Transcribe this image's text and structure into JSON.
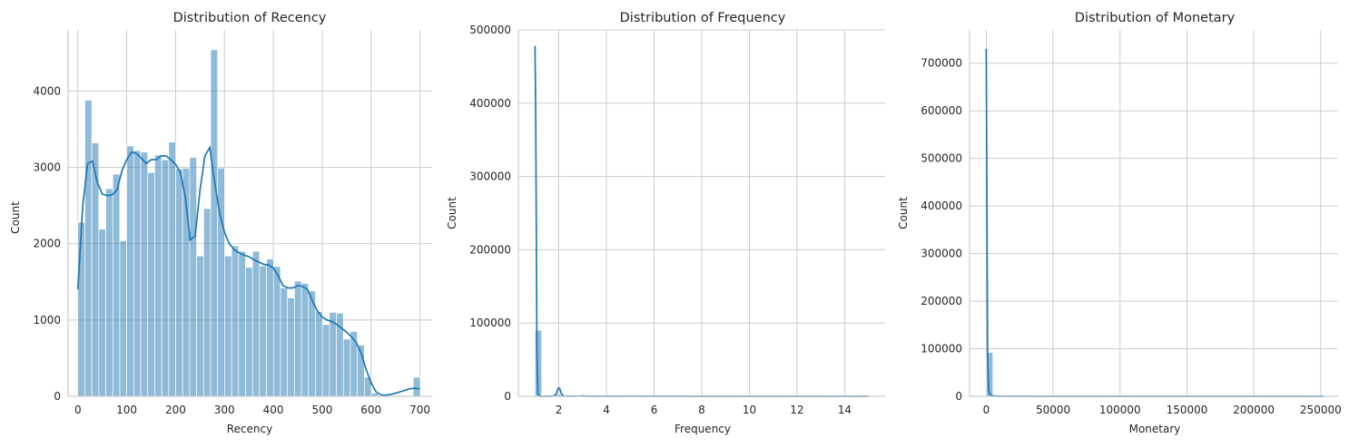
{
  "chart_data": [
    {
      "type": "histogram",
      "title": "Distribution of Recency",
      "xlabel": "Recency",
      "ylabel": "Count",
      "xlim": [
        -20,
        725
      ],
      "ylim": [
        0,
        4800
      ],
      "xticks": [
        0,
        100,
        200,
        300,
        400,
        500,
        600,
        700
      ],
      "yticks": [
        0,
        1000,
        2000,
        3000,
        4000
      ],
      "grid": true,
      "bin_edges": [
        0,
        14.3,
        28.6,
        42.9,
        57.2,
        71.5,
        85.8,
        100.1,
        114.4,
        128.7,
        143,
        157.3,
        171.6,
        185.9,
        200.2,
        214.5,
        228.8,
        243.1,
        257.4,
        271.7,
        286,
        300.3,
        314.6,
        328.9,
        343.2,
        357.5,
        371.8,
        386.1,
        400.4,
        414.7,
        429,
        443.3,
        457.6,
        471.9,
        486.2,
        500.5,
        514.8,
        529.1,
        543.4,
        557.7,
        572,
        586.3,
        600.6,
        614.9,
        629.2,
        643.5,
        657.8,
        672.1,
        686.4,
        700.7
      ],
      "counts": [
        2280,
        3880,
        3320,
        2190,
        2720,
        2910,
        2040,
        3280,
        3220,
        3200,
        2930,
        3160,
        3100,
        3330,
        2980,
        2990,
        3130,
        1840,
        2460,
        4540,
        2990,
        1840,
        1970,
        1900,
        1690,
        1900,
        1710,
        1800,
        1700,
        1420,
        1290,
        1510,
        1480,
        1380,
        1110,
        940,
        1100,
        1090,
        750,
        850,
        670,
        250,
        40,
        0,
        0,
        0,
        0,
        0,
        250
      ],
      "kde": {
        "x": [
          0,
          10,
          20,
          30,
          40,
          50,
          60,
          70,
          80,
          90,
          100,
          110,
          120,
          130,
          140,
          150,
          160,
          170,
          180,
          190,
          200,
          210,
          220,
          230,
          240,
          250,
          260,
          270,
          280,
          290,
          300,
          310,
          320,
          330,
          340,
          350,
          360,
          370,
          380,
          390,
          400,
          410,
          420,
          430,
          440,
          450,
          460,
          470,
          480,
          490,
          500,
          510,
          520,
          530,
          540,
          550,
          560,
          570,
          580,
          590,
          600,
          610,
          620,
          630,
          640,
          650,
          660,
          670,
          680,
          690,
          700
        ],
        "y": [
          1400,
          2500,
          3050,
          3080,
          2800,
          2650,
          2630,
          2640,
          2700,
          2950,
          3100,
          3200,
          3180,
          3120,
          3050,
          3100,
          3100,
          3150,
          3150,
          3100,
          3040,
          2930,
          2600,
          2050,
          2100,
          2700,
          3150,
          3260,
          2800,
          2400,
          2150,
          2000,
          1920,
          1880,
          1850,
          1830,
          1790,
          1760,
          1730,
          1720,
          1680,
          1580,
          1450,
          1420,
          1420,
          1450,
          1440,
          1400,
          1250,
          1120,
          1040,
          1000,
          980,
          940,
          890,
          840,
          780,
          700,
          560,
          350,
          180,
          60,
          20,
          15,
          25,
          40,
          60,
          80,
          100,
          105,
          95
        ]
      }
    },
    {
      "type": "histogram",
      "title": "Distribution of Frequency",
      "xlabel": "Frequency",
      "ylabel": "Count",
      "xlim": [
        0.3,
        15.7
      ],
      "ylim": [
        0,
        500000
      ],
      "xticks": [
        2,
        4,
        6,
        8,
        10,
        12,
        14
      ],
      "yticks": [
        0,
        100000,
        200000,
        300000,
        400000,
        500000
      ],
      "grid": true,
      "bin_edges": [
        1,
        1.28,
        1.56,
        1.84,
        2.12,
        2.4,
        2.68,
        2.96,
        3.24,
        3.52
      ],
      "counts": [
        90000,
        0,
        0,
        2800,
        0,
        0,
        350,
        0,
        0
      ],
      "kde": {
        "x": [
          1,
          1.03,
          1.08,
          1.12,
          1.2,
          1.4,
          1.6,
          1.8,
          1.9,
          1.95,
          2,
          2.05,
          2.1,
          2.2,
          2.5,
          2.9,
          3,
          3.1,
          3.5,
          5,
          8,
          11,
          14,
          15
        ],
        "y": [
          478000,
          380000,
          60000,
          3000,
          0,
          0,
          0,
          500,
          4000,
          9500,
          11500,
          9500,
          4000,
          200,
          0,
          400,
          700,
          300,
          0,
          50,
          0,
          0,
          0,
          0
        ]
      }
    },
    {
      "type": "histogram",
      "title": "Distribution of Monetary",
      "xlabel": "Monetary",
      "ylabel": "Count",
      "xlim": [
        -12500,
        263000
      ],
      "ylim": [
        0,
        770000
      ],
      "xticks": [
        0,
        50000,
        100000,
        150000,
        200000,
        250000
      ],
      "yticks": [
        0,
        100000,
        200000,
        300000,
        400000,
        500000,
        600000,
        700000
      ],
      "grid": true,
      "bin_edges": [
        0,
        5000,
        10000,
        15000
      ],
      "counts": [
        92000,
        500,
        0
      ],
      "kde": {
        "x": [
          0,
          500,
          1000,
          1800,
          3000,
          5000,
          10000,
          50000,
          100000,
          150000,
          200000,
          252000
        ],
        "y": [
          730000,
          400000,
          90000,
          12000,
          3000,
          1000,
          200,
          0,
          0,
          0,
          0,
          0
        ]
      }
    }
  ]
}
